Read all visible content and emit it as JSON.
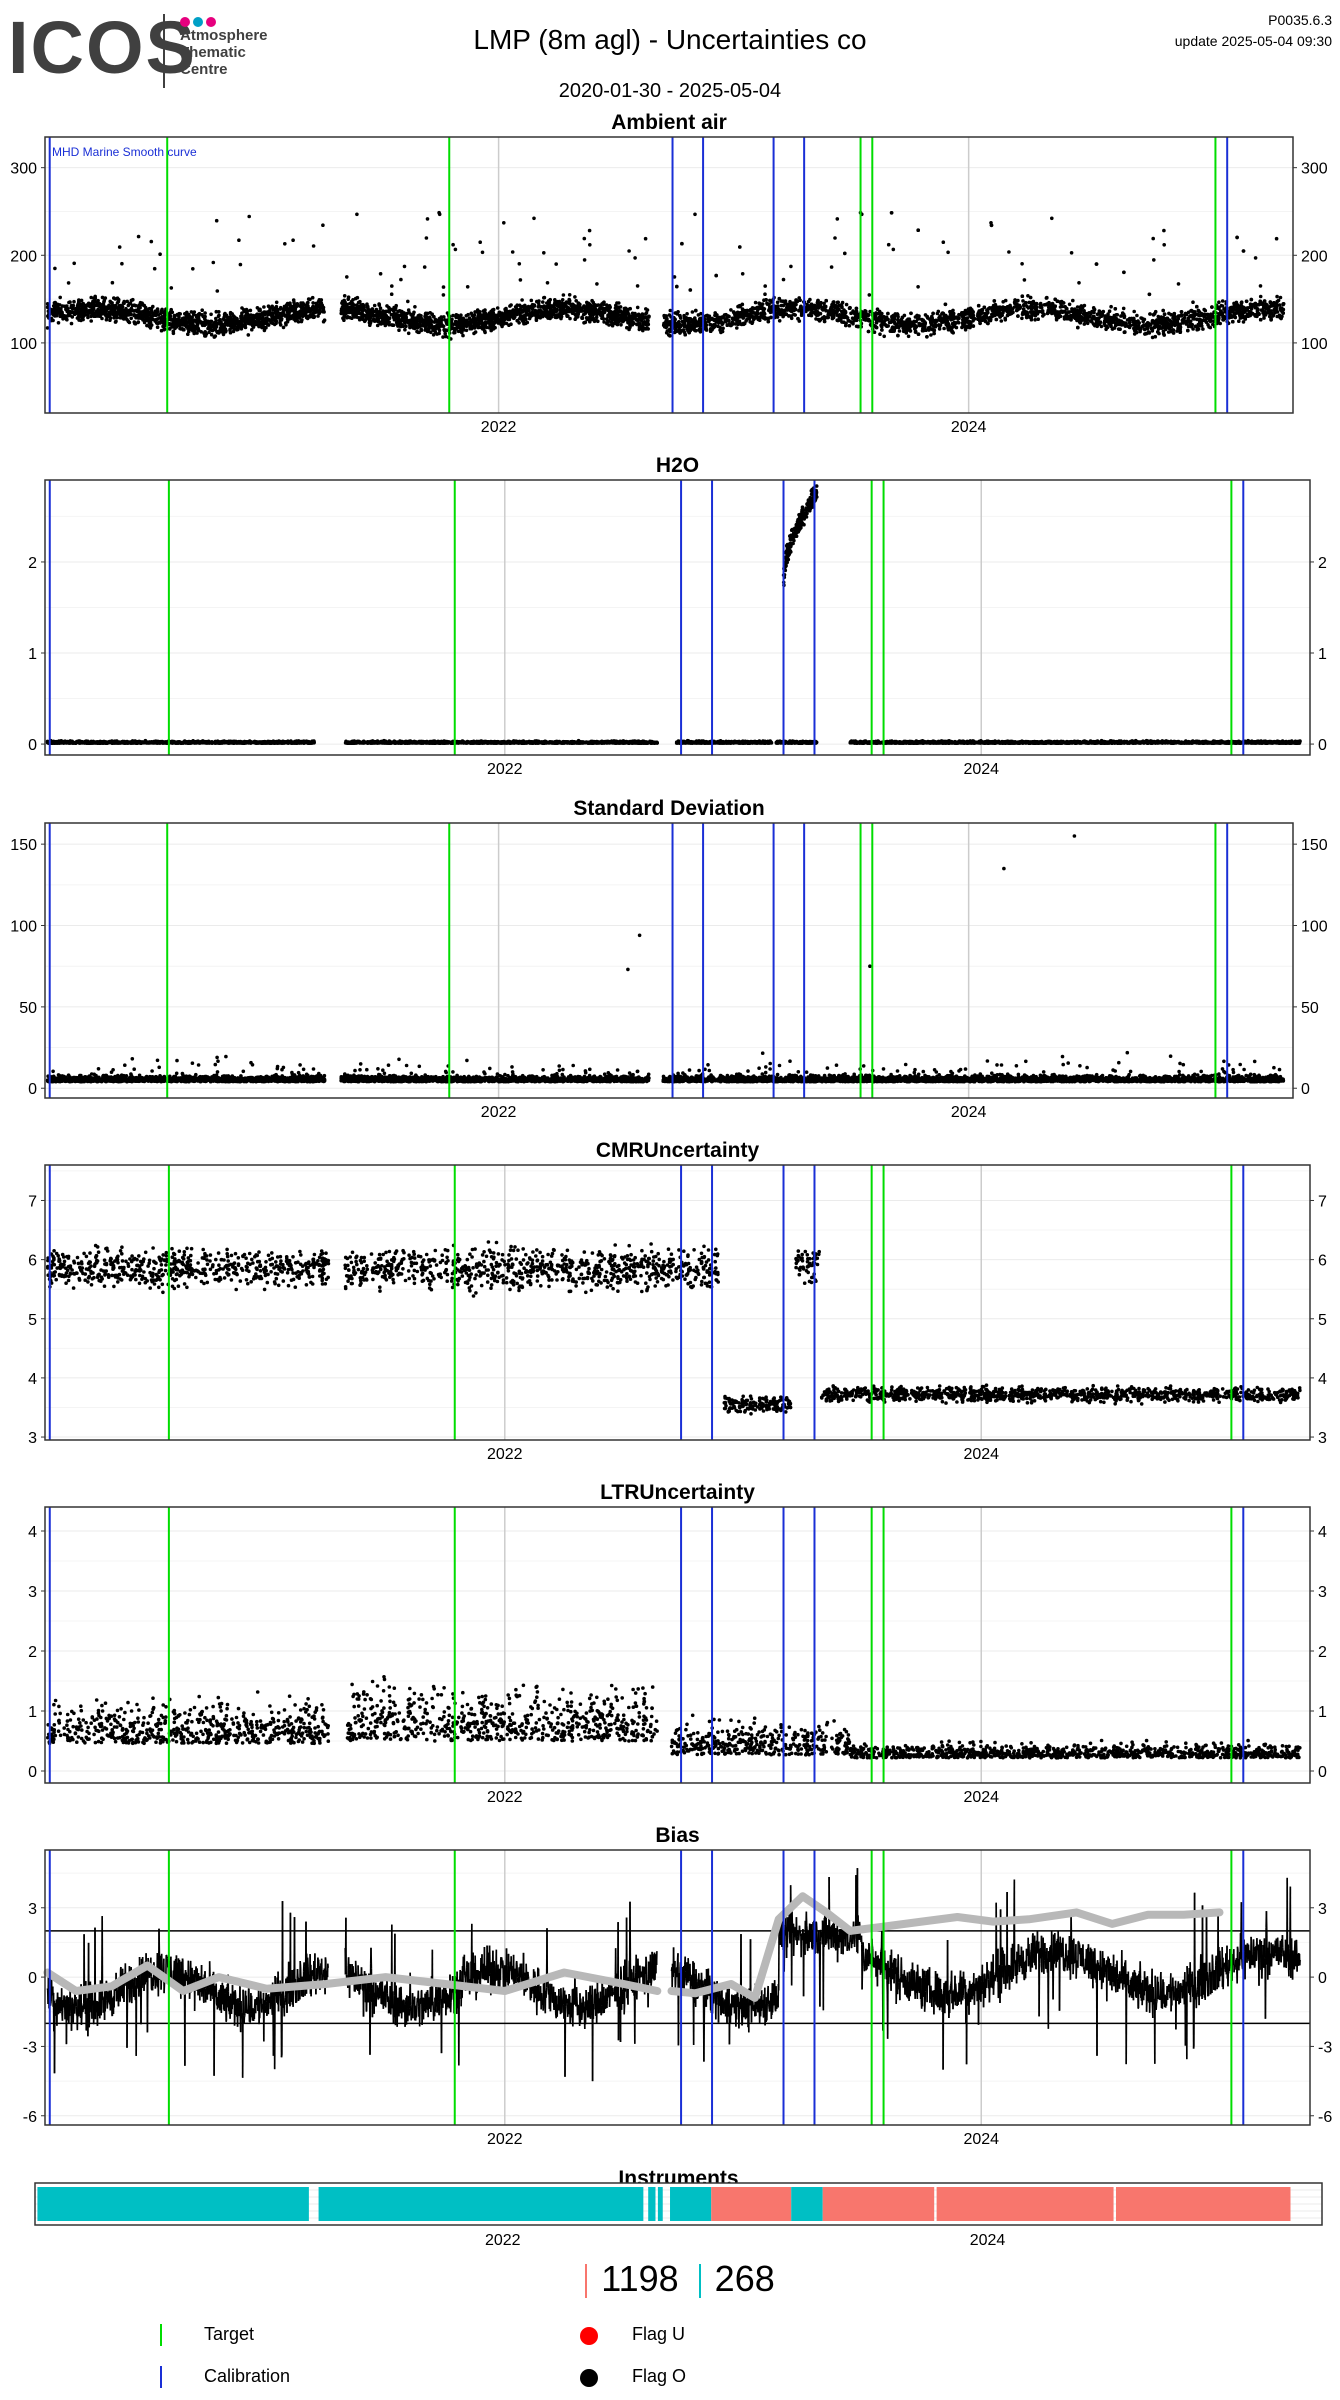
{
  "header": {
    "logo_text": "ICOS",
    "logo_subtitle": [
      "Atmosphere",
      "Thematic",
      "Centre"
    ],
    "logo_dot_colors": [
      "#e6007e",
      "#00a0c6",
      "#e6007e"
    ],
    "title": "LMP  (8m agl) - Uncertainties co",
    "date_range": "2020-01-30 - 2025-05-04",
    "version": "P0035.6.3",
    "update": "update  2025-05-04 09:30"
  },
  "colors": {
    "target_line": "#00dd00",
    "calibration_line": "#1a2fd6",
    "points": "#000000",
    "smooth_curve": "#b8b8b8",
    "instrument_a": "#00bfc4",
    "instrument_b": "#f8766d",
    "flag_u": "#ff0000",
    "flag_o": "#000000"
  },
  "chart_data": [
    {
      "type": "scatter",
      "title": "Ambient air",
      "annotation": "MHD Marine Smooth curve",
      "x_ticks": [
        "2022",
        "2024"
      ],
      "y_ticks": [
        100,
        200,
        300
      ],
      "ylim": [
        20,
        335
      ],
      "baseline": 130,
      "amplitude": 18,
      "spike_level": 250,
      "segments": [
        [
          2020.08,
          2021.26
        ],
        [
          2021.33,
          2022.64
        ],
        [
          2022.7,
          2025.34
        ]
      ],
      "grid": true,
      "legend": "bottom"
    },
    {
      "type": "scatter",
      "title": "H2O",
      "x_ticks": [
        "2022",
        "2024"
      ],
      "y_ticks": [
        0,
        1,
        2
      ],
      "ylim": [
        -0.12,
        2.9
      ],
      "baseline": 0.01,
      "amplitude": 0.01,
      "segments": [
        [
          2020.08,
          2021.2
        ],
        [
          2021.33,
          2022.64
        ],
        [
          2022.72,
          2023.12
        ],
        [
          2023.14,
          2023.31
        ],
        [
          2023.45,
          2025.34
        ]
      ],
      "high_segment": {
        "x": [
          2023.17,
          2023.31
        ],
        "y": [
          1.2,
          2.75
        ]
      },
      "grid": true
    },
    {
      "type": "scatter",
      "title": "Standard Deviation",
      "x_ticks": [
        "2022",
        "2024"
      ],
      "y_ticks": [
        0,
        50,
        100,
        150
      ],
      "ylim": [
        -6,
        163
      ],
      "baseline": 4,
      "amplitude": 5,
      "outliers": [
        {
          "x": 2024.45,
          "y": 155
        },
        {
          "x": 2024.15,
          "y": 135
        },
        {
          "x": 2022.6,
          "y": 94
        },
        {
          "x": 2022.55,
          "y": 73
        },
        {
          "x": 2023.58,
          "y": 75
        }
      ],
      "segments": [
        [
          2020.08,
          2021.26
        ],
        [
          2021.33,
          2022.64
        ],
        [
          2022.7,
          2025.34
        ]
      ],
      "grid": true
    },
    {
      "type": "scatter",
      "title": "CMRUncertainty",
      "x_ticks": [
        "2022",
        "2024"
      ],
      "y_ticks": [
        3,
        4,
        5,
        6,
        7
      ],
      "ylim": [
        2.95,
        7.6
      ],
      "levels": [
        {
          "x": [
            2020.08,
            2021.26
          ],
          "y": 5.85,
          "spread": 0.45
        },
        {
          "x": [
            2021.33,
            2022.9
          ],
          "y": 5.85,
          "spread": 0.5
        },
        {
          "x": [
            2022.92,
            2023.2
          ],
          "y": 3.55,
          "spread": 0.2
        },
        {
          "x": [
            2023.22,
            2023.32
          ],
          "y": 5.9,
          "spread": 0.4
        },
        {
          "x": [
            2023.33,
            2025.34
          ],
          "y": 3.72,
          "spread": 0.18
        }
      ],
      "grid": true
    },
    {
      "type": "scatter",
      "title": "LTRUncertainty",
      "x_ticks": [
        "2022",
        "2024"
      ],
      "y_ticks": [
        0,
        1,
        2,
        3,
        4
      ],
      "ylim": [
        -0.2,
        4.4
      ],
      "levels": [
        {
          "x": [
            2020.08,
            2021.26
          ],
          "y": 0.7,
          "spread": 0.6
        },
        {
          "x": [
            2021.33,
            2022.64
          ],
          "y": 0.8,
          "spread": 0.75
        },
        {
          "x": [
            2022.7,
            2023.45
          ],
          "y": 0.45,
          "spread": 0.45
        },
        {
          "x": [
            2023.45,
            2025.34
          ],
          "y": 0.3,
          "spread": 0.2
        }
      ],
      "grid": true
    },
    {
      "type": "line",
      "title": "Bias",
      "x_ticks": [
        "2022",
        "2024"
      ],
      "y_ticks": [
        -6,
        -3,
        0,
        3
      ],
      "ylim": [
        -6.4,
        5.5
      ],
      "hlines": [
        -2,
        2
      ],
      "segments": [
        [
          2020.08,
          2021.26
        ],
        [
          2021.33,
          2022.64
        ],
        [
          2022.7,
          2025.34
        ]
      ],
      "smooth_segments": [
        {
          "x": [
            2020.08,
            2020.2,
            2020.35,
            2020.5,
            2020.65,
            2020.8,
            2021.0,
            2021.25,
            2021.5,
            2021.75,
            2022.0,
            2022.25,
            2022.5,
            2022.64
          ],
          "y": [
            0.2,
            -0.6,
            -0.4,
            0.5,
            -0.6,
            0.0,
            -0.5,
            -0.3,
            0.0,
            -0.3,
            -0.6,
            0.2,
            -0.3,
            -0.6
          ]
        },
        {
          "x": [
            2022.7,
            2022.8,
            2022.95,
            2023.05,
            2023.15,
            2023.25,
            2023.35,
            2023.45,
            2023.6,
            2023.75,
            2023.9,
            2024.05,
            2024.2,
            2024.4,
            2024.55,
            2024.7,
            2024.85,
            2025.0
          ],
          "y": [
            -0.6,
            -0.7,
            -0.3,
            -0.9,
            2.5,
            3.5,
            2.8,
            2.0,
            2.2,
            2.4,
            2.6,
            2.4,
            2.5,
            2.8,
            2.3,
            2.7,
            2.7,
            2.8
          ]
        }
      ],
      "grid": true
    }
  ],
  "instruments": {
    "title": "Instruments",
    "x_ticks": [
      "2022",
      "2024"
    ],
    "blocks": [
      {
        "x": [
          2020.08,
          2021.2
        ],
        "color": "a"
      },
      {
        "x": [
          2021.24,
          2022.58
        ],
        "color": "a"
      },
      {
        "x": [
          2022.6,
          2022.63
        ],
        "color": "a"
      },
      {
        "x": [
          2022.64,
          2022.66
        ],
        "color": "a"
      },
      {
        "x": [
          2022.69,
          2022.86
        ],
        "color": "a"
      },
      {
        "x": [
          2022.86,
          2023.19
        ],
        "color": "b"
      },
      {
        "x": [
          2023.19,
          2023.32
        ],
        "color": "a"
      },
      {
        "x": [
          2023.32,
          2023.78
        ],
        "color": "b"
      },
      {
        "x": [
          2023.79,
          2024.52
        ],
        "color": "b"
      },
      {
        "x": [
          2024.53,
          2025.25
        ],
        "color": "b"
      }
    ]
  },
  "counts": {
    "b_count": "1198",
    "a_count": "268"
  },
  "legend": {
    "target": "Target",
    "calibration": "Calibration",
    "flag_u": "Flag U",
    "flag_o": "Flag O"
  },
  "events": {
    "target": [
      2020.59,
      2021.79,
      2023.54,
      2023.59,
      2025.05
    ],
    "calibration": [
      2020.09,
      2022.74,
      2022.87,
      2023.17,
      2023.3,
      2025.1
    ]
  },
  "x_range": [
    2020.07,
    2025.38
  ]
}
